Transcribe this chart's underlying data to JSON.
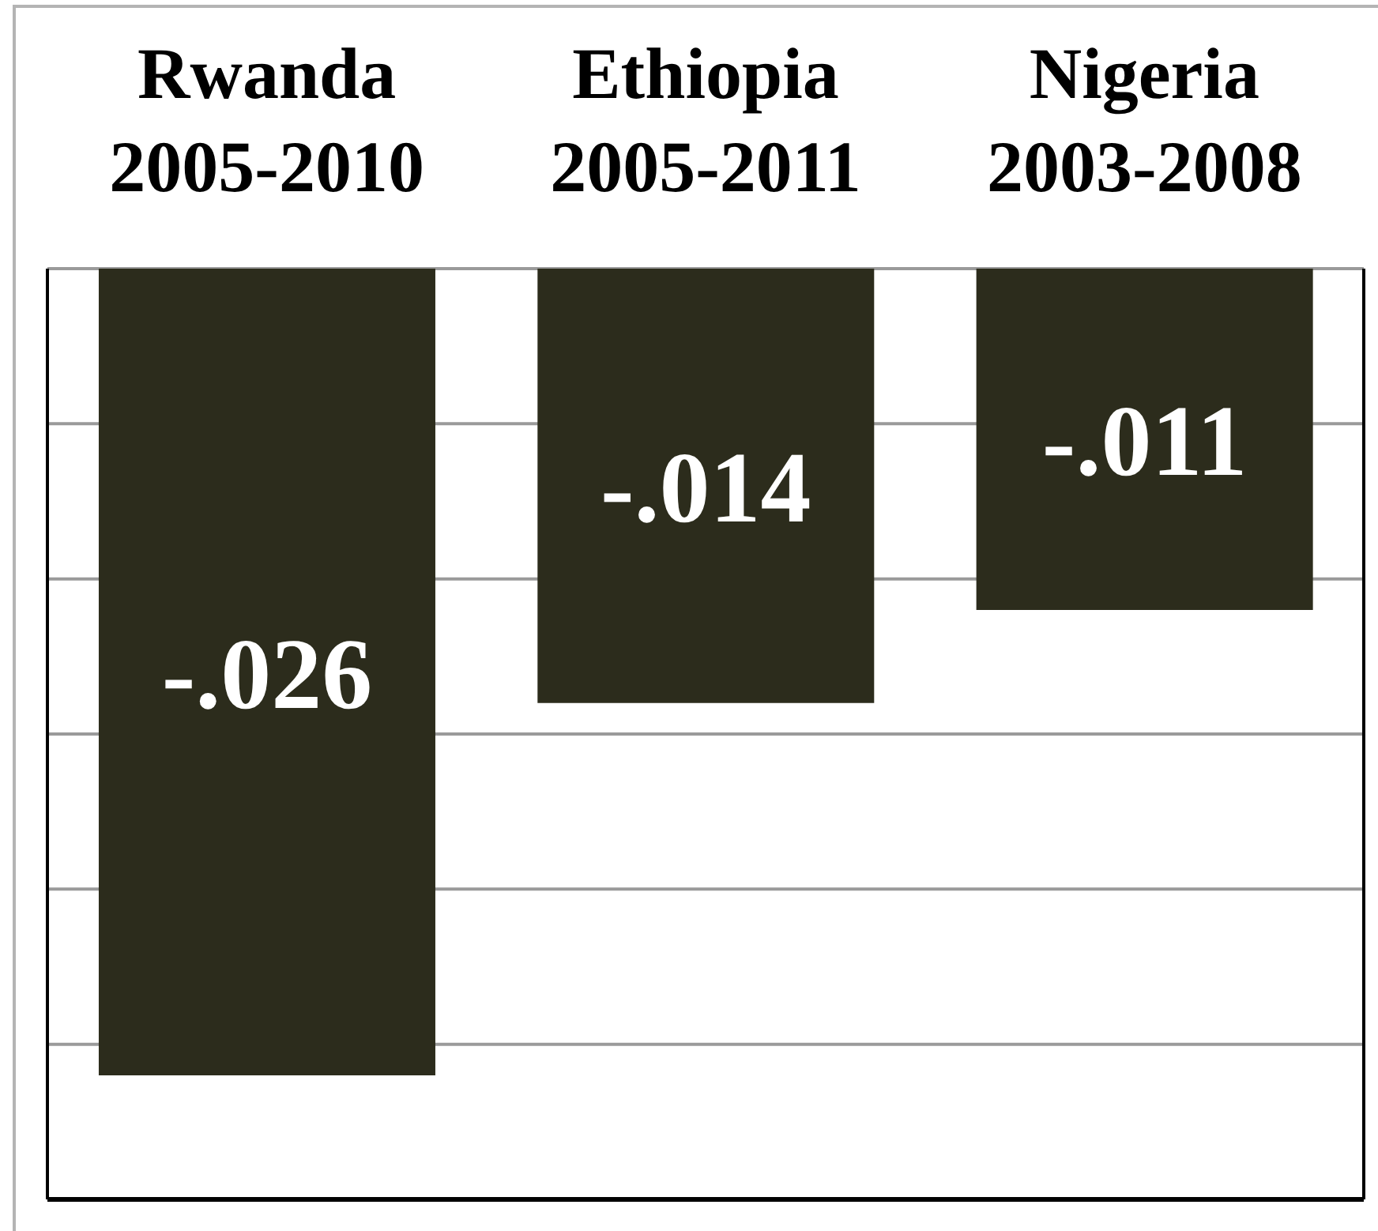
{
  "chart_data": {
    "type": "bar",
    "categories": [
      "Rwanda 2005-2010",
      "Ethiopia 2005-2011",
      "Nigeria 2003-2008"
    ],
    "values": [
      -0.026,
      -0.014,
      -0.011
    ],
    "value_labels": [
      "-.026",
      "-.014",
      "-.011"
    ],
    "color": "#2c2c1c",
    "ylim": [
      -0.03,
      0
    ],
    "yticks": [
      {
        "value": 0,
        "label": null
      },
      {
        "value": -0.005,
        "label": null
      },
      {
        "value": -0.01,
        "label": null
      },
      {
        "value": -0.015,
        "label": null
      },
      {
        "value": -0.02,
        "label": null
      },
      {
        "value": -0.025,
        "label": null
      },
      {
        "value": -0.03,
        "label": null
      }
    ],
    "grid": "y",
    "tick_labels": "x"
  }
}
